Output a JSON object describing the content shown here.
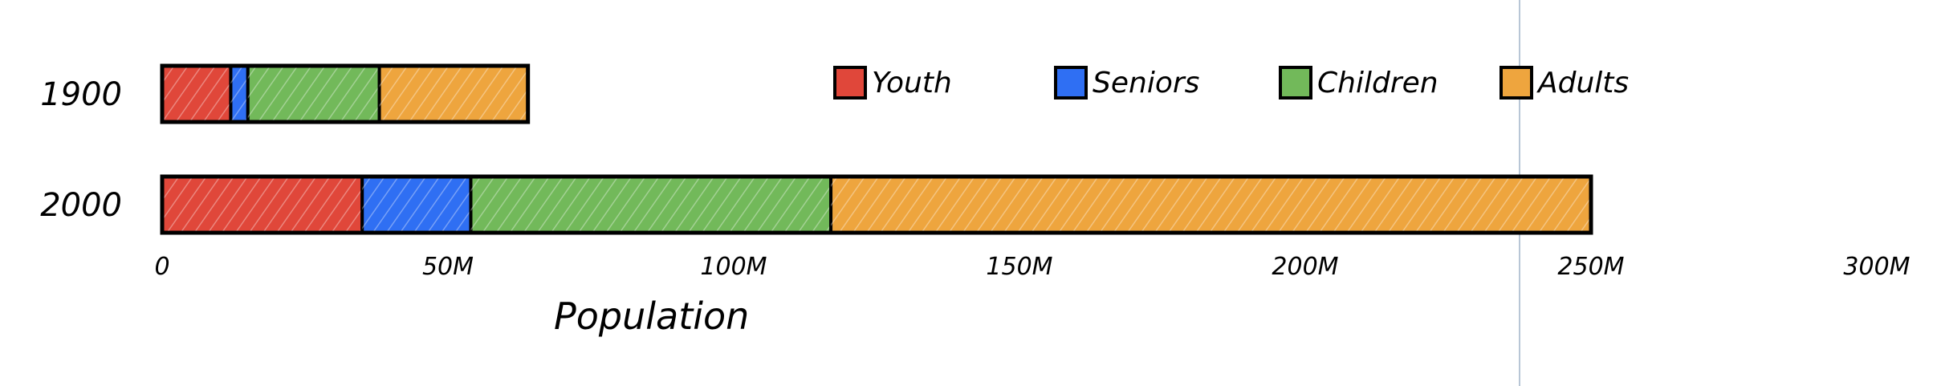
{
  "chart_data": {
    "type": "bar",
    "orientation": "horizontal",
    "stacked": true,
    "categories": [
      "1900",
      "2000"
    ],
    "series": [
      {
        "name": "Youth",
        "color": "#e0473a",
        "values": [
          12,
          35
        ]
      },
      {
        "name": "Seniors",
        "color": "#2f6ff3",
        "values": [
          3,
          19
        ]
      },
      {
        "name": "Children",
        "color": "#72b95a",
        "values": [
          23,
          63
        ]
      },
      {
        "name": "Adults",
        "color": "#eea53e",
        "values": [
          26,
          133
        ]
      }
    ],
    "xlabel": "Population",
    "xlim": [
      0,
      300
    ],
    "x_ticks": [
      {
        "value": 0,
        "label": "0"
      },
      {
        "value": 50,
        "label": "50M"
      },
      {
        "value": 100,
        "label": "100M"
      },
      {
        "value": 150,
        "label": "150M"
      },
      {
        "value": 200,
        "label": "200M"
      },
      {
        "value": 250,
        "label": "250M"
      },
      {
        "value": 300,
        "label": "300M"
      }
    ],
    "legend_position": "top-right",
    "grid": false
  }
}
